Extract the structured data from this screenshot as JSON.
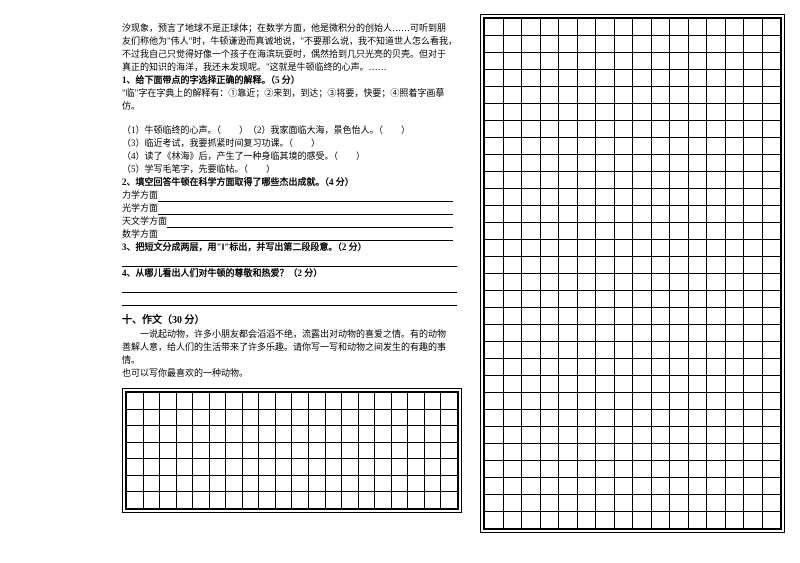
{
  "passage": {
    "line1": "汐现象，预言了地球不是正球体；在数学方面，他是微积分的创始人……可听到朋",
    "line2": "友们称他为\"伟人\"时，牛顿谦逊而真诚地说，\"不要那么说，我不知道世人怎么看我，",
    "line3": "不过我自己只觉得好像一个孩子在海滨玩耍时，偶然拾到几只光亮的贝壳。但对于",
    "line4": "真正的知识的海洋，我还未发现呢。\"这就是牛顿临终的心声。……"
  },
  "q1": {
    "title": "1、给下面带点的字选择正确的解释。（5 分）",
    "def": "\"临\"字在字典上的解释有：①靠近；②来到，到达；③将要，快要；④照着字画摹仿。",
    "items": [
      "（1）牛顿临终的心声。（　　）　（2）我家面临大海，景色怡人。（　　）",
      "（3）临近考试，我要抓紧时间复习功课。（　　）",
      "（4）读了《林海》后，产生了一种身临其境的感受。（　　）",
      "（5）学写毛笔字，先要临帖。（　　）"
    ]
  },
  "q2": {
    "title": "2、填空回答牛顿在科学方面取得了哪些杰出成就。（4 分）",
    "labels": [
      "力学方面",
      "光学方面",
      "天文学方面",
      "数学方面"
    ]
  },
  "q3": {
    "title": "3、把短文分成两层，用\"‖\"标出，并写出第二段段意。（2 分）"
  },
  "q4": {
    "title": "4、从哪儿看出人们对牛顿的尊敬和热爱？（2 分）"
  },
  "essay": {
    "heading": "十、作文（30 分）",
    "p1": "一说起动物，许多小朋友都会滔滔不绝，流露出对动物的喜爱之情。有的动物",
    "p2": "善解人意，给人们的生活带来了许多乐趣。请你写一写和动物之间发生的有趣的事",
    "p3": "情。",
    "p4": "也可以写你最喜欢的一种动物。"
  },
  "smallGrid": {
    "rows": 7,
    "cols": 20
  },
  "bigGrid": {
    "rows": 30,
    "cols": 16
  },
  "colors": {
    "text": "#000000",
    "bg": "#ffffff",
    "border": "#000000"
  }
}
